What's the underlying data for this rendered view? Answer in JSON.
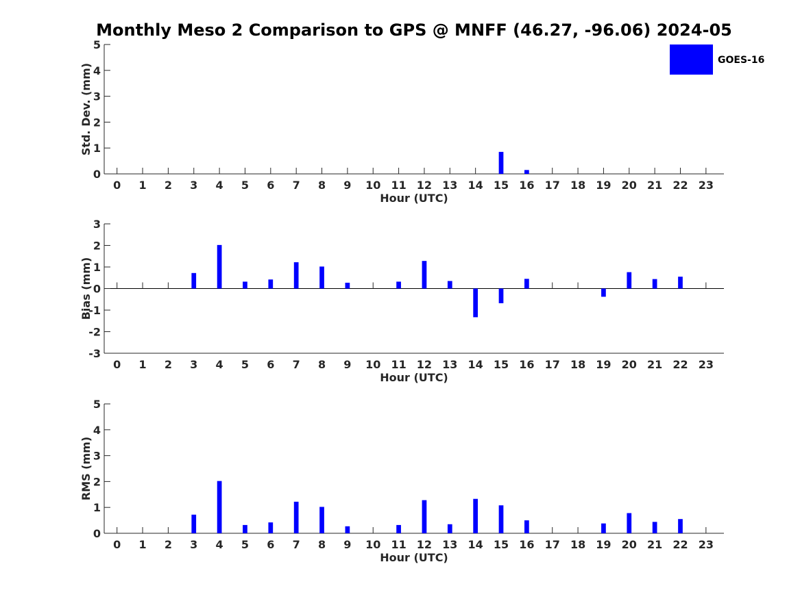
{
  "title": "Monthly Meso 2 Comparison to GPS @ MNFF (46.27, -96.06) 2024-05",
  "legend": {
    "label": "GOES-16",
    "color": "#0000ff",
    "placement": "top-right"
  },
  "chart_data": [
    {
      "type": "bar",
      "ylabel": "Std. Dev. (mm)",
      "xlabel": "Hour (UTC)",
      "ylim": [
        0,
        5
      ],
      "yticks": [
        0,
        1,
        2,
        3,
        4,
        5
      ],
      "categories": [
        0,
        1,
        2,
        3,
        4,
        5,
        6,
        7,
        8,
        9,
        10,
        11,
        12,
        13,
        14,
        15,
        16,
        17,
        18,
        19,
        20,
        21,
        22,
        23
      ],
      "series": [
        {
          "name": "GOES-16",
          "values": [
            0,
            0,
            0,
            0,
            0,
            0,
            0,
            0,
            0,
            0,
            0,
            0,
            0,
            0,
            0,
            0.85,
            0.15,
            0,
            0,
            0,
            0,
            0,
            0,
            0
          ]
        }
      ]
    },
    {
      "type": "bar",
      "ylabel": "Bias (mm)",
      "xlabel": "Hour (UTC)",
      "ylim": [
        -3,
        3
      ],
      "yticks": [
        -3,
        -2,
        -1,
        0,
        1,
        2,
        3
      ],
      "categories": [
        0,
        1,
        2,
        3,
        4,
        5,
        6,
        7,
        8,
        9,
        10,
        11,
        12,
        13,
        14,
        15,
        16,
        17,
        18,
        19,
        20,
        21,
        22,
        23
      ],
      "series": [
        {
          "name": "GOES-16",
          "values": [
            0,
            0,
            0,
            0.72,
            2.02,
            0.32,
            0.42,
            1.22,
            1.02,
            0.27,
            0,
            0.32,
            1.28,
            0.35,
            -1.33,
            -0.68,
            0.45,
            0,
            0,
            -0.38,
            0.76,
            0.44,
            0.55,
            0
          ]
        }
      ]
    },
    {
      "type": "bar",
      "ylabel": "RMS (mm)",
      "xlabel": "Hour (UTC)",
      "ylim": [
        0,
        5
      ],
      "yticks": [
        0,
        1,
        2,
        3,
        4,
        5
      ],
      "categories": [
        0,
        1,
        2,
        3,
        4,
        5,
        6,
        7,
        8,
        9,
        10,
        11,
        12,
        13,
        14,
        15,
        16,
        17,
        18,
        19,
        20,
        21,
        22,
        23
      ],
      "series": [
        {
          "name": "GOES-16",
          "values": [
            0,
            0,
            0,
            0.72,
            2.02,
            0.32,
            0.42,
            1.22,
            1.02,
            0.27,
            0,
            0.32,
            1.28,
            0.35,
            1.33,
            1.08,
            0.5,
            0,
            0,
            0.38,
            0.78,
            0.44,
            0.55,
            0
          ]
        }
      ]
    }
  ]
}
